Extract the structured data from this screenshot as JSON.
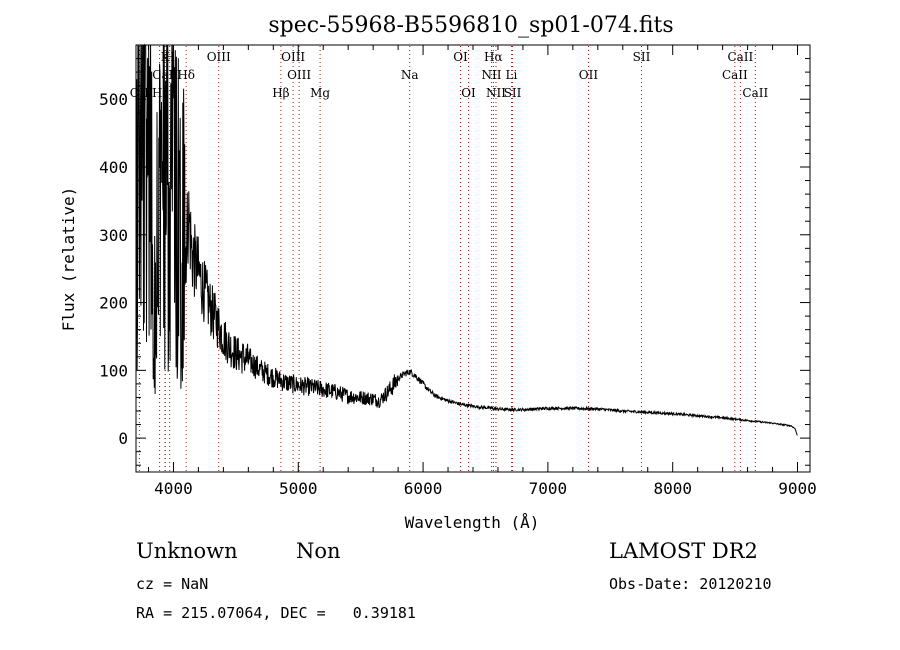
{
  "chart_data": {
    "type": "line",
    "title": "spec-55968-B5596810_sp01-074.fits",
    "xlabel": "Wavelength (Å)",
    "ylabel": "Flux (relative)",
    "xlim": [
      3700,
      9100
    ],
    "ylim": [
      -50,
      580
    ],
    "x_ticks": [
      4000,
      5000,
      6000,
      7000,
      8000,
      9000
    ],
    "y_ticks": [
      0,
      100,
      200,
      300,
      400,
      500
    ],
    "grid": false,
    "line_color": "#000000",
    "marker_color": "#cc0000",
    "series": [
      {
        "x": [
          3700,
          3720,
          3740,
          3760,
          3780,
          3800,
          3820,
          3840,
          3860,
          3880,
          3900,
          3920,
          3940,
          3960,
          3980,
          4000,
          4020,
          4040,
          4060,
          4080,
          4100,
          4120,
          4150,
          4200,
          4250,
          4300,
          4350,
          4400,
          4450,
          4500,
          4600,
          4700,
          4800,
          4900,
          5000,
          5100,
          5200,
          5300,
          5400,
          5500,
          5600,
          5650,
          5700,
          5750,
          5800,
          5850,
          5900,
          5950,
          6000,
          6050,
          6100,
          6200,
          6300,
          6400,
          6500,
          6600,
          6700,
          6800,
          6900,
          7000,
          7200,
          7400,
          7600,
          7800,
          8000,
          8200,
          8400,
          8600,
          8800,
          8950,
          8980,
          9000
        ],
        "y": [
          420,
          540,
          470,
          560,
          520,
          470,
          540,
          60,
          500,
          560,
          400,
          540,
          470,
          520,
          430,
          560,
          380,
          450,
          300,
          420,
          280,
          330,
          270,
          245,
          215,
          190,
          170,
          150,
          135,
          125,
          115,
          100,
          90,
          82,
          78,
          75,
          72,
          68,
          62,
          60,
          58,
          55,
          65,
          75,
          88,
          95,
          98,
          90,
          80,
          70,
          62,
          55,
          50,
          47,
          45,
          43,
          42,
          42,
          43,
          44,
          44,
          43,
          40,
          38,
          36,
          33,
          30,
          26,
          22,
          18,
          14,
          3
        ]
      }
    ],
    "lines": [
      {
        "label": "H",
        "wavelength": 3970,
        "row": 1
      },
      {
        "label": "K",
        "wavelength": 3934,
        "row": 1
      },
      {
        "label": "CaII",
        "wavelength": 3934,
        "row": 2
      },
      {
        "label": "Hδ",
        "wavelength": 4102,
        "row": 2
      },
      {
        "label": "OII",
        "wavelength": 3727,
        "row": 3
      },
      {
        "label": "HI",
        "wavelength": 3889,
        "row": 3
      },
      {
        "label": "OIII",
        "wavelength": 4363,
        "row": 1
      },
      {
        "label": "OIII",
        "wavelength": 4959,
        "row": 1
      },
      {
        "label": "OIII",
        "wavelength": 5007,
        "row": 2
      },
      {
        "label": "Hβ",
        "wavelength": 4861,
        "row": 3
      },
      {
        "label": "Mg",
        "wavelength": 5175,
        "row": 3
      },
      {
        "label": "Na",
        "wavelength": 5893,
        "row": 2
      },
      {
        "label": "OI",
        "wavelength": 6300,
        "row": 1
      },
      {
        "label": "OI",
        "wavelength": 6364,
        "row": 3
      },
      {
        "label": "Hα",
        "wavelength": 6563,
        "row": 1
      },
      {
        "label": "NII",
        "wavelength": 6548,
        "row": 2
      },
      {
        "label": "NII",
        "wavelength": 6584,
        "row": 3
      },
      {
        "label": "Li",
        "wavelength": 6708,
        "row": 2
      },
      {
        "label": "SII",
        "wavelength": 6717,
        "row": 3
      },
      {
        "label": "OII",
        "wavelength": 7325,
        "row": 2
      },
      {
        "label": "SII",
        "wavelength": 7750,
        "row": 1
      },
      {
        "label": "CaII",
        "wavelength": 8498,
        "row": 2
      },
      {
        "label": "CaII",
        "wavelength": 8542,
        "row": 1
      },
      {
        "label": "CaII",
        "wavelength": 8662,
        "row": 3
      }
    ]
  },
  "info": {
    "class": "Unknown",
    "subclass": "Non",
    "survey": "LAMOST DR2",
    "cz": "cz = NaN",
    "obs_date": "Obs-Date: 20120210",
    "coords": "RA = 215.07064, DEC =   0.39181"
  }
}
